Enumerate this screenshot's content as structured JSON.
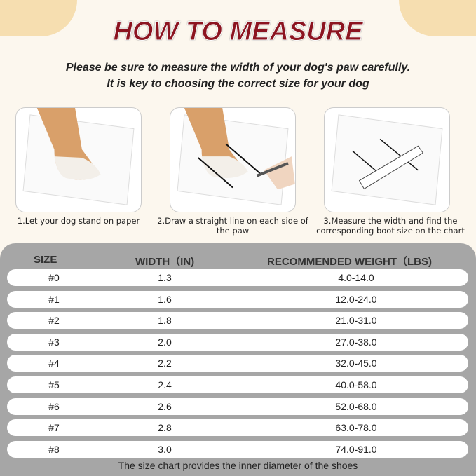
{
  "title": "HOW TO MEASURE",
  "subtitle": [
    "Please be sure to measure the width of your dog's paw carefully.",
    "It is key to choosing the correct size for your dog"
  ],
  "steps": [
    {
      "caption": "1.Let your dog stand on paper"
    },
    {
      "caption": "2.Draw a straight line on each side of the paw"
    },
    {
      "caption": "3.Measure the width and find the corresponding boot size on the chart"
    }
  ],
  "table": {
    "headers": [
      "SIZE",
      "WIDTH（IN)",
      "RECOMMENDED WEIGHT（LBS)"
    ],
    "rows": [
      [
        "#0",
        "1.3",
        "4.0-14.0"
      ],
      [
        "#1",
        "1.6",
        "12.0-24.0"
      ],
      [
        "#2",
        "1.8",
        "21.0-31.0"
      ],
      [
        "#3",
        "2.0",
        "27.0-38.0"
      ],
      [
        "#4",
        "2.2",
        "32.0-45.0"
      ],
      [
        "#5",
        "2.4",
        "40.0-58.0"
      ],
      [
        "#6",
        "2.6",
        "52.0-68.0"
      ],
      [
        "#7",
        "2.8",
        "63.0-78.0"
      ],
      [
        "#8",
        "3.0",
        "74.0-91.0"
      ]
    ]
  },
  "footnote": "The size chart provides the inner diameter of the shoes",
  "colors": {
    "title": "#8c1420",
    "background": "#fcf7ee",
    "panel": "#a6a6a6"
  }
}
